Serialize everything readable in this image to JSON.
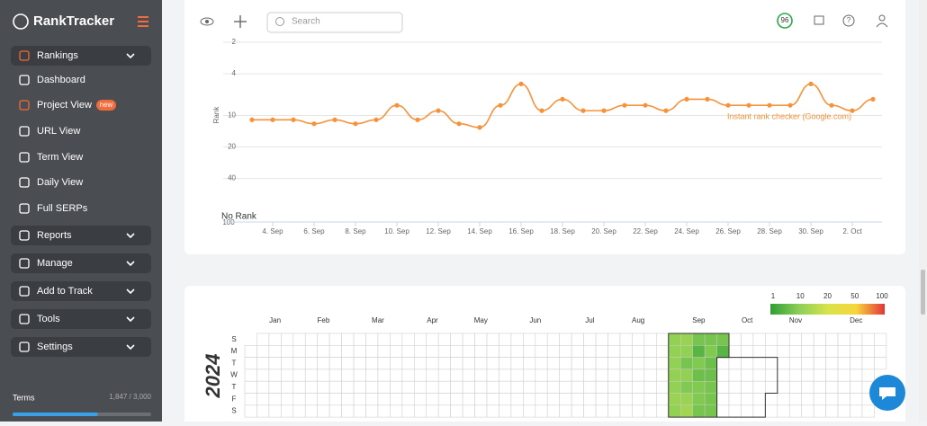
{
  "sidebar": {
    "logo": "RankTracker",
    "menu": [
      {
        "label": "Rankings",
        "section": true
      },
      {
        "label": "Dashboard"
      },
      {
        "label": "Project View",
        "active": true,
        "badge": "new"
      },
      {
        "label": "URL View"
      },
      {
        "label": "Term View"
      },
      {
        "label": "Daily View"
      },
      {
        "label": "Full SERPs"
      },
      {
        "label": "Reports",
        "section": true
      },
      {
        "label": "Manage",
        "section": true
      },
      {
        "label": "Add to Track",
        "section": true
      },
      {
        "label": "Tools",
        "section": true
      },
      {
        "label": "Settings",
        "section": true
      }
    ],
    "terms": "Terms",
    "usage": {
      "used": 1847,
      "limit": 3000,
      "label": "1,847 / 3,000"
    }
  },
  "topbar": {
    "search_placeholder": "Search",
    "score": "96"
  },
  "chart_data": {
    "type": "line",
    "y_label": "Rank",
    "log_scale": true,
    "inverted": true,
    "ylim": [
      2,
      100
    ],
    "yticks": [
      2,
      4,
      10,
      20,
      40,
      100
    ],
    "no_rank_label": "No Rank",
    "grid": true,
    "categories": [
      null,
      "4. Sep",
      null,
      "6. Sep",
      null,
      "8. Sep",
      null,
      "10. Sep",
      null,
      "12. Sep",
      null,
      "14. Sep",
      null,
      "16. Sep",
      null,
      "18. Sep",
      null,
      "20. Sep",
      null,
      "22. Sep",
      null,
      "24. Sep",
      null,
      "26. Sep",
      null,
      "28. Sep",
      null,
      "30. Sep",
      null,
      "2. Oct",
      null
    ],
    "series": [
      {
        "name": "Instant rank checker (Google.com)",
        "color": "#f7923a",
        "values": [
          11,
          11,
          11,
          12,
          11,
          12,
          11,
          8,
          11,
          9,
          12,
          13,
          8,
          5,
          9,
          7,
          9,
          9,
          8,
          8,
          9,
          7,
          7,
          8,
          8,
          8,
          8,
          5,
          8,
          9,
          7
        ]
      }
    ]
  },
  "heatmap": {
    "year": "2024",
    "months": [
      "Jan",
      "Feb",
      "Mar",
      "Apr",
      "May",
      "Jun",
      "Jul",
      "Aug",
      "Sep",
      "Oct",
      "Nov",
      "Dec"
    ],
    "days": [
      "S",
      "M",
      "T",
      "W",
      "T",
      "F",
      "S"
    ],
    "scale_ticks": [
      1,
      10,
      20,
      50,
      100
    ],
    "scale_colors": [
      "#2f9e35",
      "#8bcf55",
      "#d7e34a",
      "#f7d63a",
      "#e3343a"
    ],
    "sep_values": [
      11,
      11,
      11,
      11,
      11,
      12,
      11,
      12,
      11,
      8,
      11,
      9,
      12,
      13,
      8,
      5,
      9,
      7,
      9,
      9,
      8,
      8,
      9,
      7,
      7,
      8,
      8,
      8,
      8,
      5
    ]
  }
}
